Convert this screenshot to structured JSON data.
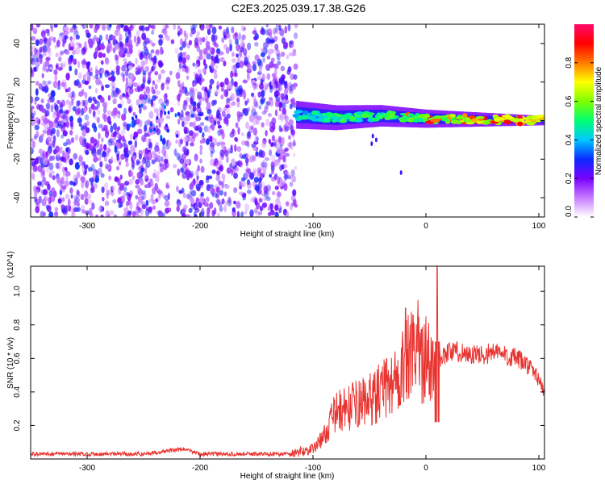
{
  "title": "C2E3.2025.039.17.38.G26",
  "chart_data": [
    {
      "type": "heatmap",
      "xlabel": "Height of straight line (km)",
      "ylabel": "Frequency (Hz)",
      "xlim": [
        -350,
        105
      ],
      "ylim": [
        -50,
        50
      ],
      "xticks": [
        -300,
        -200,
        -100,
        0,
        100
      ],
      "yticks": [
        -40,
        -20,
        0,
        20,
        40
      ],
      "colorbar": {
        "label": "Normalized spectral amplitude",
        "range": [
          0,
          1
        ],
        "ticks": [
          "0.0",
          "0.2",
          "0.4",
          "0.6",
          "0.8"
        ],
        "colors": [
          "#ffffff",
          "#c87bff",
          "#7a00ff",
          "#0a2bff",
          "#00c8ff",
          "#00ff70",
          "#7fff00",
          "#ffff00",
          "#ff7a00",
          "#ff0000",
          "#ff0a6a"
        ]
      },
      "features": [
        {
          "name": "noise",
          "x_range": [
            -350,
            -115
          ],
          "freq_range": [
            -50,
            50
          ],
          "amplitude": 0.15
        },
        {
          "name": "signal",
          "x_range": [
            -115,
            105
          ],
          "center_freq": [
            [
              -115,
              3
            ],
            [
              -80,
              1.5
            ],
            [
              -40,
              2.5
            ],
            [
              0,
              1
            ],
            [
              105,
              0
            ]
          ],
          "peak_amplitude": 0.95
        }
      ]
    },
    {
      "type": "line",
      "xlabel": "Height of straight line (km)",
      "ylabel": "SNR (10 * v/v)",
      "y_multiplier": "(x10^4)",
      "xlim": [
        -350,
        105
      ],
      "ylim": [
        0,
        1.15
      ],
      "xticks": [
        -300,
        -200,
        -100,
        0,
        100
      ],
      "yticks": [
        "0.2",
        "0.4",
        "0.6",
        "0.8",
        "1.0"
      ],
      "color": "#e8332f",
      "series": [
        {
          "x": [
            -350,
            -300,
            -250,
            -215,
            -200,
            -150,
            -120,
            -100,
            -90,
            -80,
            -70,
            -60,
            -50,
            -40,
            -30,
            -20,
            -15,
            -10,
            -5,
            0,
            5,
            10,
            15,
            20,
            30,
            40,
            50,
            60,
            70,
            80,
            90,
            100,
            105
          ],
          "y": [
            0.03,
            0.03,
            0.03,
            0.06,
            0.03,
            0.03,
            0.03,
            0.06,
            0.14,
            0.28,
            0.3,
            0.33,
            0.35,
            0.4,
            0.45,
            0.55,
            0.6,
            0.62,
            0.6,
            0.58,
            0.55,
            0.6,
            0.62,
            0.64,
            0.64,
            0.62,
            0.62,
            0.64,
            0.62,
            0.6,
            0.56,
            0.48,
            0.38
          ]
        }
      ],
      "spikes": [
        {
          "x": -18,
          "y": 0.9
        },
        {
          "x": -7,
          "y": 0.95
        },
        {
          "x": 10,
          "y": 1.15
        },
        {
          "x": 0,
          "y": 0.85
        }
      ]
    }
  ]
}
